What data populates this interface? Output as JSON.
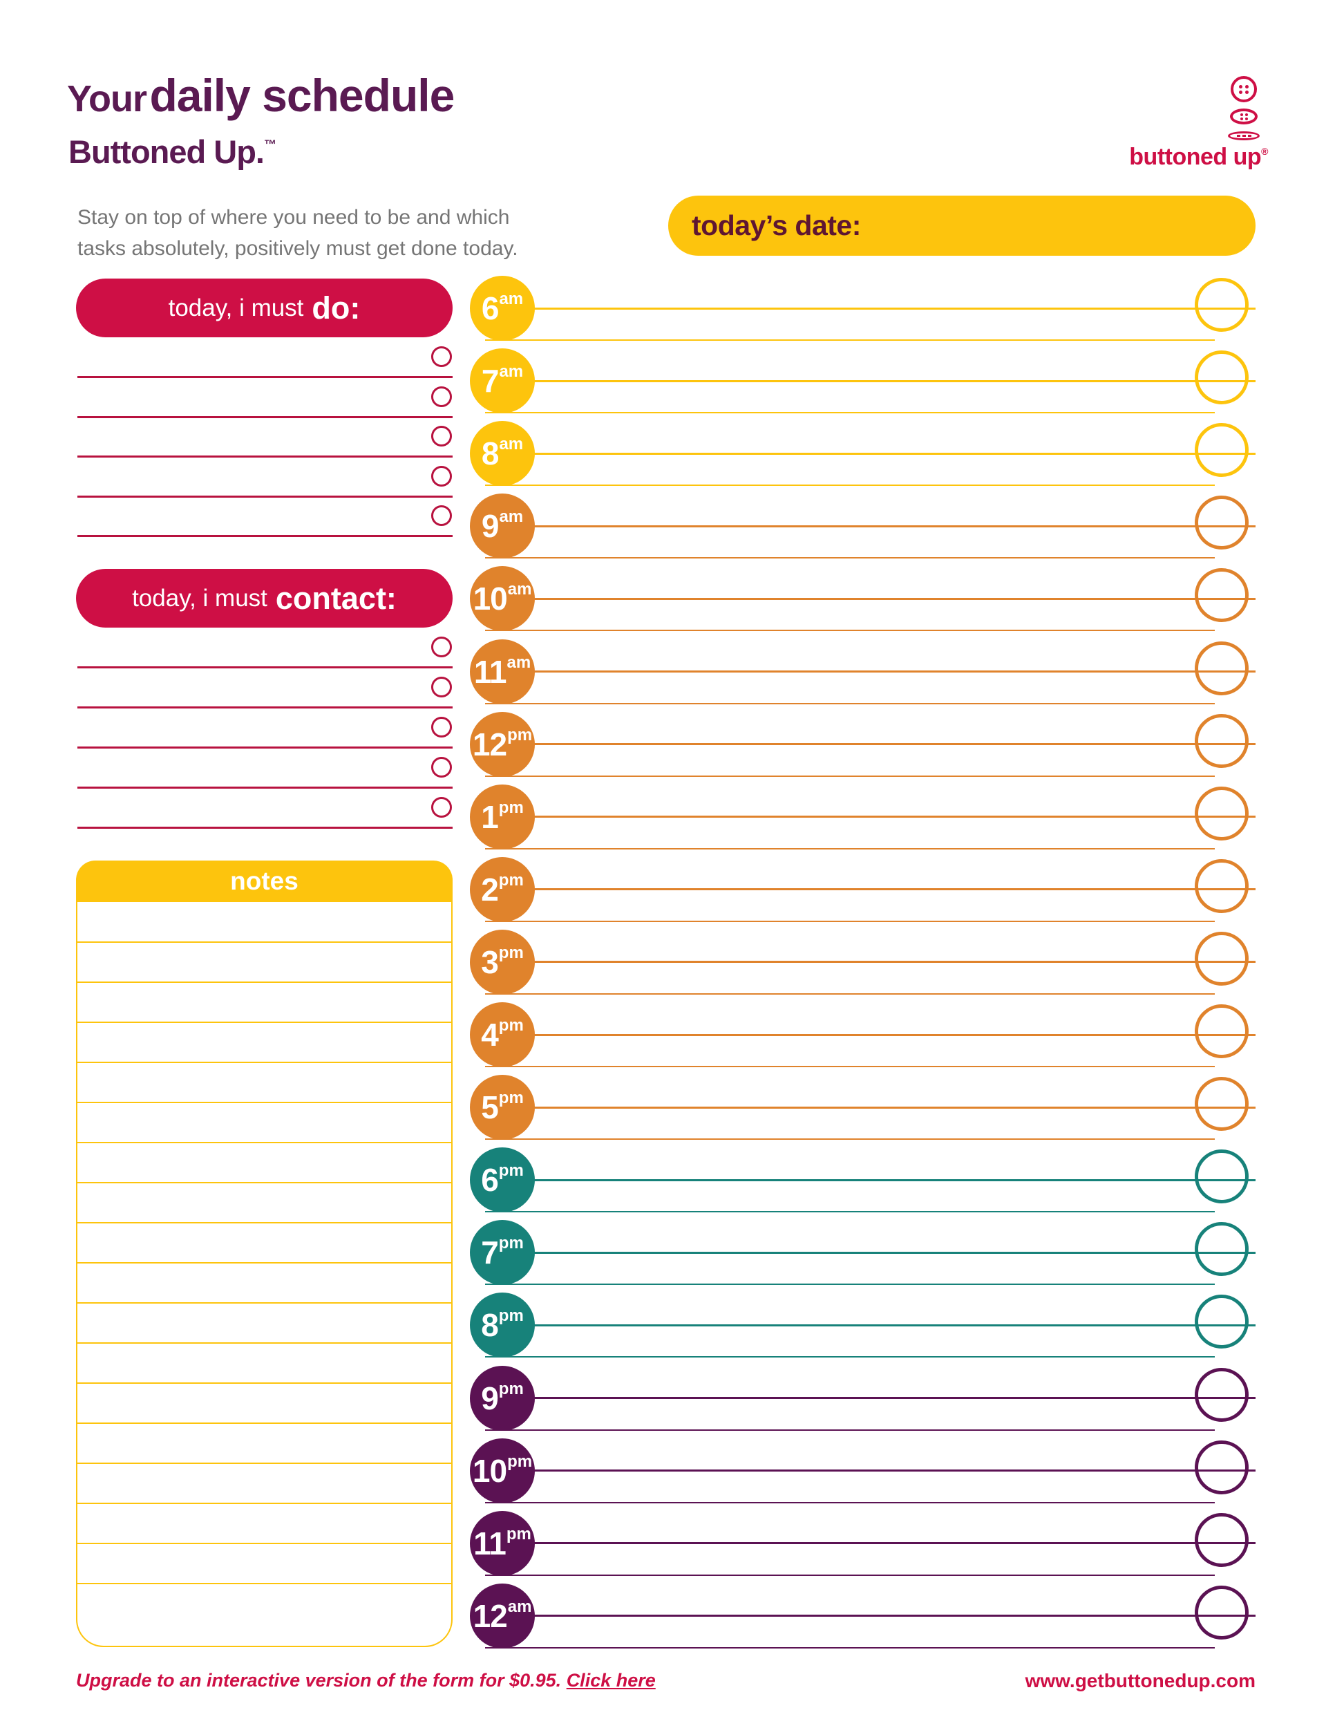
{
  "colors": {
    "crimson": "#CE0F45",
    "line_crimson": "#B8123F",
    "yellow": "#FDC40D",
    "orange": "#E0832C",
    "teal": "#17827A",
    "purple": "#5B1253",
    "title_purple": "#5A1A52",
    "date_text": "#5E1632",
    "subtitle_gray": "#757575"
  },
  "header": {
    "title_regular": "Your",
    "title_bold": "daily schedule",
    "brand_line": "Buttoned Up.",
    "brand_tm": "™",
    "description_line1": "Stay on top of where you need to be and which",
    "description_line2": "tasks absolutely, positively must get done today."
  },
  "logo": {
    "text": "buttoned up",
    "registered_mark": "®"
  },
  "date_banner": {
    "label": "today’s date:",
    "value": ""
  },
  "todo_section": {
    "title_prefix": "today, i must",
    "title_emphasis": "do:",
    "row_count": 5
  },
  "contact_section": {
    "title_prefix": "today, i must",
    "title_emphasis": "contact:",
    "row_count": 5
  },
  "notes_section": {
    "title": "notes",
    "line_count": 17
  },
  "schedule": {
    "hours": [
      {
        "label": "6",
        "meridiem": "am",
        "color": "yellow"
      },
      {
        "label": "7",
        "meridiem": "am",
        "color": "yellow"
      },
      {
        "label": "8",
        "meridiem": "am",
        "color": "yellow"
      },
      {
        "label": "9",
        "meridiem": "am",
        "color": "orange"
      },
      {
        "label": "10",
        "meridiem": "am",
        "color": "orange"
      },
      {
        "label": "11",
        "meridiem": "am",
        "color": "orange"
      },
      {
        "label": "12",
        "meridiem": "pm",
        "color": "orange"
      },
      {
        "label": "1",
        "meridiem": "pm",
        "color": "orange"
      },
      {
        "label": "2",
        "meridiem": "pm",
        "color": "orange"
      },
      {
        "label": "3",
        "meridiem": "pm",
        "color": "orange"
      },
      {
        "label": "4",
        "meridiem": "pm",
        "color": "orange"
      },
      {
        "label": "5",
        "meridiem": "pm",
        "color": "orange"
      },
      {
        "label": "6",
        "meridiem": "pm",
        "color": "teal"
      },
      {
        "label": "7",
        "meridiem": "pm",
        "color": "teal"
      },
      {
        "label": "8",
        "meridiem": "pm",
        "color": "teal"
      },
      {
        "label": "9",
        "meridiem": "pm",
        "color": "purple"
      },
      {
        "label": "10",
        "meridiem": "pm",
        "color": "purple"
      },
      {
        "label": "11",
        "meridiem": "pm",
        "color": "purple"
      },
      {
        "label": "12",
        "meridiem": "am",
        "color": "purple"
      }
    ]
  },
  "footer": {
    "upgrade_text": "Upgrade to an interactive version of the form for $0.95.",
    "upgrade_link": "Click here",
    "website": "www.getbuttonedup.com"
  }
}
